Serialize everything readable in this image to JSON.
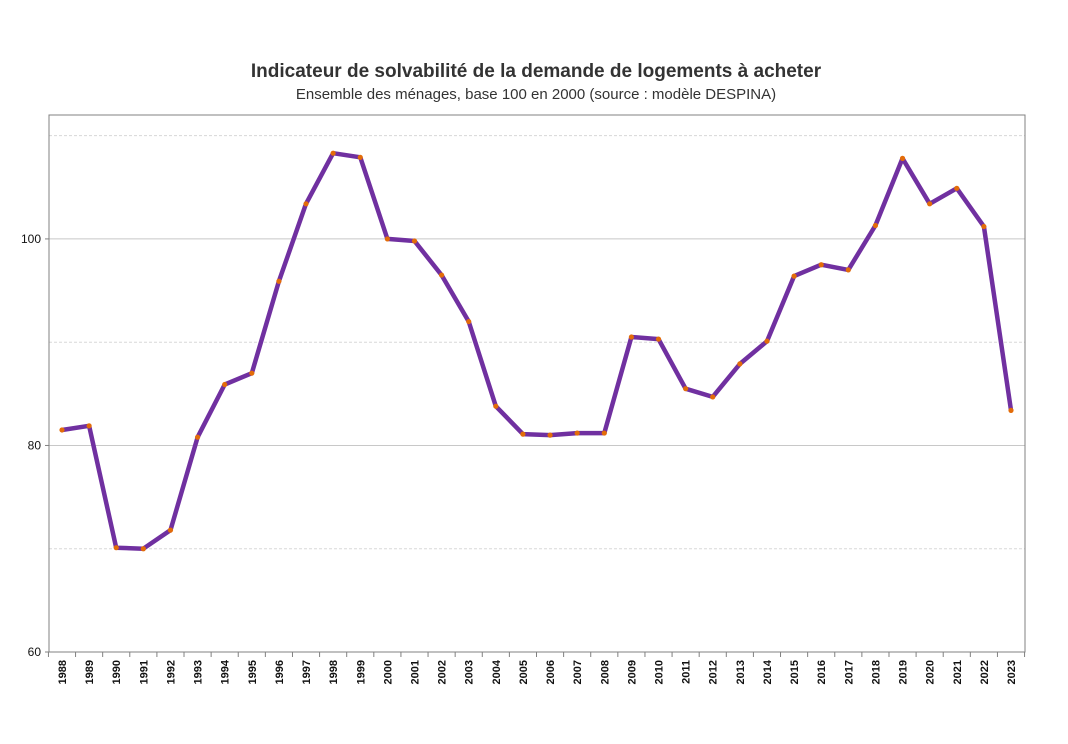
{
  "chart_data": {
    "type": "line",
    "title": "Indicateur de solvabilité de la demande de logements à acheter",
    "subtitle": "Ensemble des ménages, base 100 en 2000 (source : modèle DESPINA)",
    "xlabel": "",
    "ylabel": "",
    "ylim": [
      60,
      112
    ],
    "yticks": [
      60,
      80,
      100
    ],
    "minor_gridlines": [
      70,
      90,
      110
    ],
    "grid": true,
    "legend": "none",
    "x": [
      "1988",
      "1989",
      "1990",
      "1991",
      "1992",
      "1993",
      "1994",
      "1995",
      "1996",
      "1997",
      "1998",
      "1999",
      "2000",
      "2001",
      "2002",
      "2003",
      "2004",
      "2005",
      "2006",
      "2007",
      "2008",
      "2009",
      "2010",
      "2011",
      "2012",
      "2013",
      "2014",
      "2015",
      "2016",
      "2017",
      "2018",
      "2019",
      "2020",
      "2021",
      "2022",
      "2023"
    ],
    "series": [
      {
        "values": [
          81.5,
          81.9,
          70.1,
          70.0,
          71.8,
          80.8,
          85.9,
          87.0,
          95.9,
          103.4,
          108.3,
          107.9,
          100.0,
          99.8,
          96.5,
          92.0,
          83.8,
          81.1,
          81.0,
          81.2,
          81.2,
          90.5,
          90.3,
          85.5,
          84.7,
          87.9,
          90.1,
          96.4,
          97.5,
          97.0,
          101.3,
          107.8,
          103.4,
          104.9,
          101.2,
          83.4
        ],
        "color": "#7030A0",
        "marker_color": "#E36C09"
      }
    ],
    "colors": {
      "line": "#7030A0",
      "marker": "#E36C09",
      "major_grid": "#c8c8c8",
      "minor_grid": "#d8d8d8",
      "frame": "#808080"
    }
  }
}
